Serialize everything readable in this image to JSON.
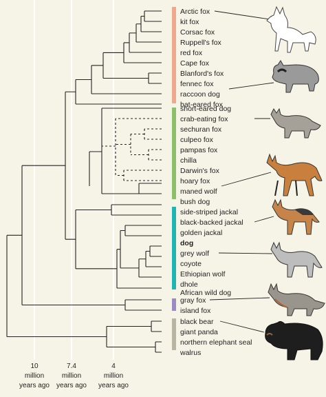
{
  "taxa": [
    "Arctic fox",
    "kit fox",
    "Corsac fox",
    "Ruppell's fox",
    "red fox",
    "Cape fox",
    "Blanford's fox",
    "fennec fox",
    "raccoon dog",
    "bat-eared fox",
    "short-eared dog",
    "crab-eating fox",
    "sechuran fox",
    "culpeo fox",
    "pampas fox",
    "chilla",
    "Darwin's fox",
    "hoary fox",
    "maned wolf",
    "bush dog",
    "side-striped jackal",
    "black-backed jackal",
    "golden jackal",
    "dog",
    "grey wolf",
    "coyote",
    "Ethiopian wolf",
    "dhole",
    "African wild dog",
    "gray fox",
    "island fox",
    "black bear",
    "giant panda",
    "northern elephant seal",
    "walrus"
  ],
  "timeline": [
    {
      "line1": "10",
      "line2": "million",
      "line3": "years ago"
    },
    {
      "line1": "7.4",
      "line2": "million",
      "line3": "years ago"
    },
    {
      "line1": "4",
      "line2": "million",
      "line3": "years ago"
    }
  ],
  "clade_colors": {
    "vulpes_clade": "#f0a98c",
    "south_american_clade": "#8cc06a",
    "wolf_clade": "#1fb5b0",
    "urocyon_clade": "#9c8ac4",
    "outgroup": "#b9b5a3"
  },
  "illustrations": [
    "arctic-fox",
    "raccoon-dog",
    "crab-eating-fox",
    "maned-wolf",
    "black-backed-jackal",
    "grey-wolf",
    "gray-fox",
    "black-bear"
  ]
}
